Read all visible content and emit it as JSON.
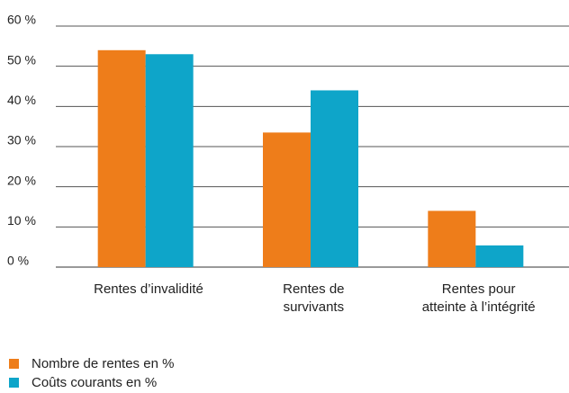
{
  "chart_data": {
    "type": "bar",
    "categories": [
      "Rentes d’invalidité",
      "Rentes de\nsurvivants",
      "Rentes pour\natteinte à l’intégrité"
    ],
    "series": [
      {
        "name": "Nombre de rentes en %",
        "color": "#ee7d1a",
        "values": [
          54,
          33.5,
          14
        ]
      },
      {
        "name": "Coûts courants en %",
        "color": "#0ea5c9",
        "values": [
          53,
          44,
          5.4
        ]
      }
    ],
    "ylim": [
      0,
      60
    ],
    "yticks": [
      {
        "value": 0,
        "label": "0 %"
      },
      {
        "value": 10,
        "label": "10 %"
      },
      {
        "value": 20,
        "label": "20 %"
      },
      {
        "value": 30,
        "label": "30 %"
      },
      {
        "value": 40,
        "label": "40 %"
      },
      {
        "value": 50,
        "label": "50 %"
      },
      {
        "value": 60,
        "label": "60 %"
      }
    ],
    "grid": true
  }
}
